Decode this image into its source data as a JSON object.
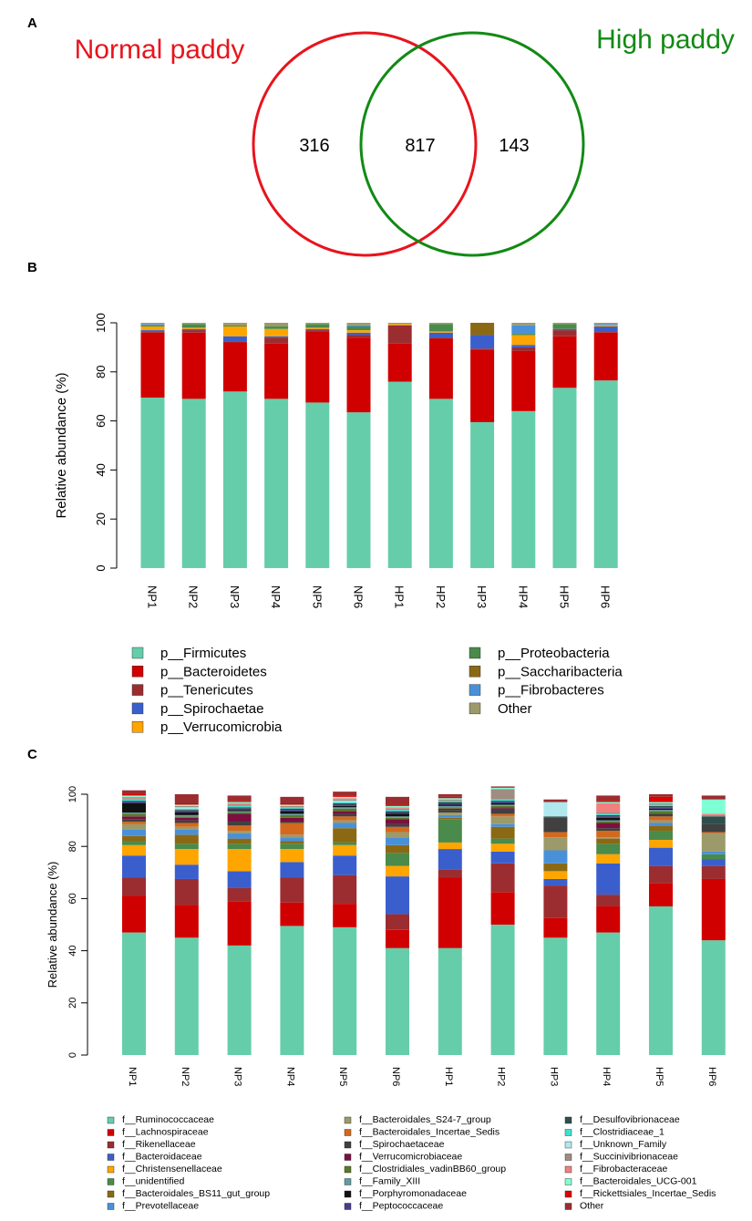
{
  "panels": {
    "a": "A",
    "b": "B",
    "c": "C"
  },
  "venn": {
    "left_label": "Normal paddy",
    "right_label": "High paddy",
    "left_only": "316",
    "both": "817",
    "right_only": "143",
    "left_color": "#e8141c",
    "right_color": "#128a14"
  },
  "chart_data": [
    {
      "type": "bar",
      "stacked": true,
      "title": "",
      "ylabel": "Relative abundance (%)",
      "xlabel": "",
      "ylim": [
        0,
        100
      ],
      "yticks": [
        "0",
        "20",
        "40",
        "60",
        "80",
        "100"
      ],
      "categories": [
        "NP1",
        "NP2",
        "NP3",
        "NP4",
        "NP5",
        "NP6",
        "HP1",
        "HP2",
        "HP3",
        "HP4",
        "HP5",
        "HP6"
      ],
      "series": [
        {
          "name": "p__Firmicutes",
          "color": "#66cdaa",
          "values": [
            69.5,
            69,
            72,
            69,
            67.5,
            63.5,
            76,
            69,
            59.5,
            64,
            73.5,
            76.5
          ]
        },
        {
          "name": "p__Bacteroidetes",
          "color": "#d00000",
          "values": [
            26.5,
            27,
            20,
            22.5,
            29,
            30.5,
            15.5,
            24.5,
            29.5,
            24.5,
            21,
            19.5
          ]
        },
        {
          "name": "p__Tenericutes",
          "color": "#9b2d30",
          "values": [
            0.5,
            1,
            0.5,
            2.5,
            0.5,
            1,
            7.5,
            0.5,
            0.5,
            1.5,
            2.5,
            0.5
          ]
        },
        {
          "name": "p__Spirochaetae",
          "color": "#3a5fcd",
          "values": [
            0.5,
            0.5,
            2,
            0.5,
            0.5,
            1,
            0,
            2,
            5.5,
            1,
            0.5,
            2
          ]
        },
        {
          "name": "p__Verrucomicrobia",
          "color": "#ffa500",
          "values": [
            1.5,
            0.5,
            4,
            3,
            0.5,
            1,
            0.5,
            0.5,
            0,
            4,
            0,
            0.5
          ]
        },
        {
          "name": "p__Proteobacteria",
          "color": "#4a8a4a",
          "values": [
            0.5,
            1.5,
            0.5,
            1,
            1.5,
            1.5,
            0,
            3,
            0,
            0.5,
            2,
            0
          ]
        },
        {
          "name": "p__Saccharibacteria",
          "color": "#8b6914",
          "values": [
            0,
            0,
            0,
            0,
            0,
            0,
            0,
            0,
            5,
            0,
            0,
            0
          ]
        },
        {
          "name": "p__Fibrobacteres",
          "color": "#4a90d9",
          "values": [
            0.5,
            0,
            0,
            0,
            0,
            0.5,
            0,
            0,
            0,
            3.5,
            0,
            0.5
          ]
        },
        {
          "name": "Other",
          "color": "#9c9a6a",
          "values": [
            0.5,
            0.5,
            1,
            1.5,
            0.5,
            1,
            0.5,
            0.5,
            0,
            1,
            0.5,
            0.5
          ]
        }
      ]
    },
    {
      "type": "bar",
      "stacked": true,
      "title": "",
      "ylabel": "Relative abundance (%)",
      "xlabel": "",
      "ylim": [
        0,
        100
      ],
      "yticks": [
        "0",
        "20",
        "40",
        "60",
        "80",
        "100"
      ],
      "categories": [
        "NP1",
        "NP2",
        "NP3",
        "NP4",
        "NP5",
        "NP6",
        "HP1",
        "HP2",
        "HP3",
        "HP4",
        "HP5",
        "HP6"
      ],
      "series": [
        {
          "name": "f__Ruminococcaceae",
          "color": "#66cdaa",
          "values": [
            47,
            45,
            42,
            49.5,
            49,
            41,
            41,
            50,
            45,
            47,
            57,
            44
          ]
        },
        {
          "name": "f__Lachnospiraceae",
          "color": "#d00000",
          "values": [
            14,
            12.5,
            17,
            9,
            9,
            7,
            27,
            12.5,
            7.5,
            10,
            9,
            23.5
          ]
        },
        {
          "name": "f__Rikenellaceae",
          "color": "#9b2d30",
          "values": [
            7,
            10,
            5,
            9.5,
            11,
            6,
            3,
            11,
            12.5,
            4.5,
            6.5,
            5
          ]
        },
        {
          "name": "f__Bacteroidaceae",
          "color": "#3a5fcd",
          "values": [
            8.5,
            5.5,
            6.5,
            6,
            7.5,
            14.5,
            8,
            4.5,
            2.5,
            12,
            7,
            2.5
          ]
        },
        {
          "name": "f__Christensenellaceae",
          "color": "#ffa500",
          "values": [
            4,
            6,
            8.5,
            5,
            4,
            4,
            2.5,
            3,
            3,
            3.5,
            3,
            0
          ]
        },
        {
          "name": "f__unidentified",
          "color": "#4a8a4a",
          "values": [
            1.5,
            2,
            2,
            2,
            1,
            5,
            9,
            2,
            0,
            4,
            3.5,
            2
          ]
        },
        {
          "name": "f__Bacteroidales_BS11_gut_group",
          "color": "#8b6914",
          "values": [
            2,
            3.5,
            2,
            1,
            5.5,
            3,
            0.5,
            4.5,
            3,
            2,
            2,
            0
          ]
        },
        {
          "name": "f__Prevotellaceae",
          "color": "#4a90d9",
          "values": [
            2.5,
            2,
            2,
            1.5,
            2,
            3,
            1,
            1,
            5,
            0,
            1,
            1
          ]
        },
        {
          "name": "f__Bacteroidales_S24-7_group",
          "color": "#9c9a6a",
          "values": [
            2,
            1,
            1,
            1,
            1,
            2,
            1,
            3,
            5,
            0.5,
            1,
            7
          ]
        },
        {
          "name": "f__Bacteroidales_Incertae_Sedis",
          "color": "#d2691e",
          "values": [
            1,
            1.5,
            2,
            4.5,
            1.5,
            2,
            0,
            1,
            2,
            2.5,
            1.5,
            0.5
          ]
        },
        {
          "name": "f__Spirochaetaceae",
          "color": "#404040",
          "values": [
            1,
            1,
            1.5,
            0.5,
            1,
            1,
            1,
            2,
            5.5,
            1,
            1,
            3
          ]
        },
        {
          "name": "f__Verrucomicrobiaceae",
          "color": "#7a1040",
          "values": [
            1,
            1,
            3,
            1.5,
            1,
            2,
            0.5,
            0.5,
            0,
            2,
            0,
            0
          ]
        },
        {
          "name": "f__Clostridiales_vadinBB60_group",
          "color": "#5a7a2a",
          "values": [
            1,
            0.5,
            0.5,
            1,
            1,
            0.5,
            0.5,
            0.5,
            0,
            0.5,
            1,
            0
          ]
        },
        {
          "name": "f__Family_XIII",
          "color": "#5f9ea0",
          "values": [
            0.5,
            0.5,
            0.5,
            0.5,
            0.5,
            0.5,
            0.5,
            0.5,
            0,
            0.5,
            0.5,
            0
          ]
        },
        {
          "name": "f__Porphyromonadaceae",
          "color": "#111111",
          "values": [
            3.5,
            1,
            0.5,
            1,
            0.5,
            1,
            0.5,
            0.5,
            0,
            1,
            0.5,
            0
          ]
        },
        {
          "name": "f__Peptococcaceae",
          "color": "#483d8b",
          "values": [
            0.5,
            0.5,
            0.5,
            0.5,
            0.5,
            0.5,
            0.5,
            0.5,
            0,
            0.5,
            0.5,
            0
          ]
        },
        {
          "name": "f__Desulfovibrionaceae",
          "color": "#2f4f4f",
          "values": [
            0.5,
            0.5,
            0.5,
            0.5,
            0.5,
            0.5,
            0.5,
            0.5,
            0.5,
            0.5,
            0.5,
            3
          ]
        },
        {
          "name": "f__Clostridiaceae_1",
          "color": "#40e0d0",
          "values": [
            0.5,
            0.5,
            0.5,
            0.5,
            0.5,
            0.5,
            0.5,
            0.5,
            0,
            0.5,
            0.5,
            0
          ]
        },
        {
          "name": "f__Unknown_Family",
          "color": "#b0e8ee",
          "values": [
            0,
            0.5,
            0,
            0,
            0.5,
            0,
            0,
            0,
            5.5,
            0,
            0,
            0
          ]
        },
        {
          "name": "f__Succinivibrionaceae",
          "color": "#a08c80",
          "values": [
            0.5,
            0.5,
            0.5,
            0.5,
            0.5,
            0.5,
            0.5,
            4,
            0,
            0.5,
            0.5,
            0.5
          ]
        },
        {
          "name": "f__Fibrobacteraceae",
          "color": "#f08080",
          "values": [
            0.5,
            0,
            0.5,
            0,
            0.5,
            0.5,
            0,
            0,
            0,
            3.5,
            0,
            0.5
          ]
        },
        {
          "name": "f__Bacteroidales_UCG-001",
          "color": "#7fffd4",
          "values": [
            0.5,
            0.5,
            0.5,
            0.5,
            0.5,
            0.5,
            0.5,
            0.5,
            0,
            0.5,
            0.5,
            5.5
          ]
        },
        {
          "name": "f__Rickettsiales_Incertae_Sedis",
          "color": "#e00000",
          "values": [
            0.5,
            0.5,
            0.5,
            0.5,
            0.5,
            0.5,
            0.5,
            0,
            0,
            0.5,
            2,
            0
          ]
        },
        {
          "name": "Other",
          "color": "#9b2d30",
          "values": [
            1.5,
            3.5,
            2,
            2.5,
            1.5,
            3,
            1,
            0.5,
            1,
            2,
            1,
            1.5
          ]
        }
      ]
    }
  ]
}
